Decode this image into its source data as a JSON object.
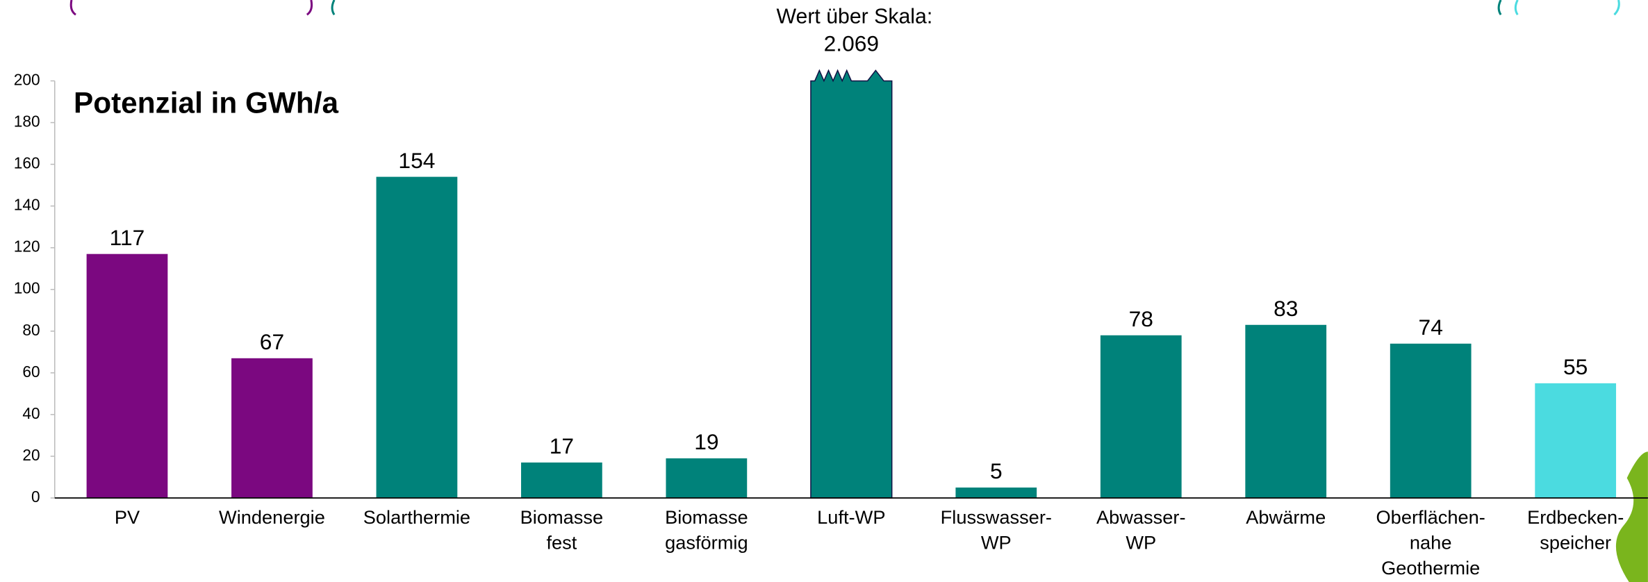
{
  "chart_data": {
    "type": "bar",
    "title": "Potenzial in GWh/a",
    "categories": [
      "PV",
      "Windenergie",
      "Solarthermie",
      "Biomasse\nfest",
      "Biomasse\ngasförmig",
      "Luft-WP",
      "Flusswasser-\nWP",
      "Abwasser-\nWP",
      "Abwärme",
      "Oberflächen-\nnahe\nGeothermie",
      "Erdbecken-\nspeicher"
    ],
    "values": [
      117,
      67,
      154,
      17,
      19,
      2069,
      5,
      78,
      83,
      74,
      55
    ],
    "value_labels": [
      "117",
      "67",
      "154",
      "17",
      "19",
      "2.069",
      "5",
      "78",
      "83",
      "74",
      "55"
    ],
    "colors": [
      "#7b0880",
      "#7b0880",
      "#00827a",
      "#00827a",
      "#00827a",
      "#00827a",
      "#00827a",
      "#00827a",
      "#00827a",
      "#00827a",
      "#4bdbe0"
    ],
    "annotation": "Wert über Skala:",
    "ylim": [
      0,
      200
    ],
    "yticks": [
      0,
      20,
      40,
      60,
      80,
      100,
      120,
      140,
      160,
      180,
      200
    ],
    "grid": false
  }
}
